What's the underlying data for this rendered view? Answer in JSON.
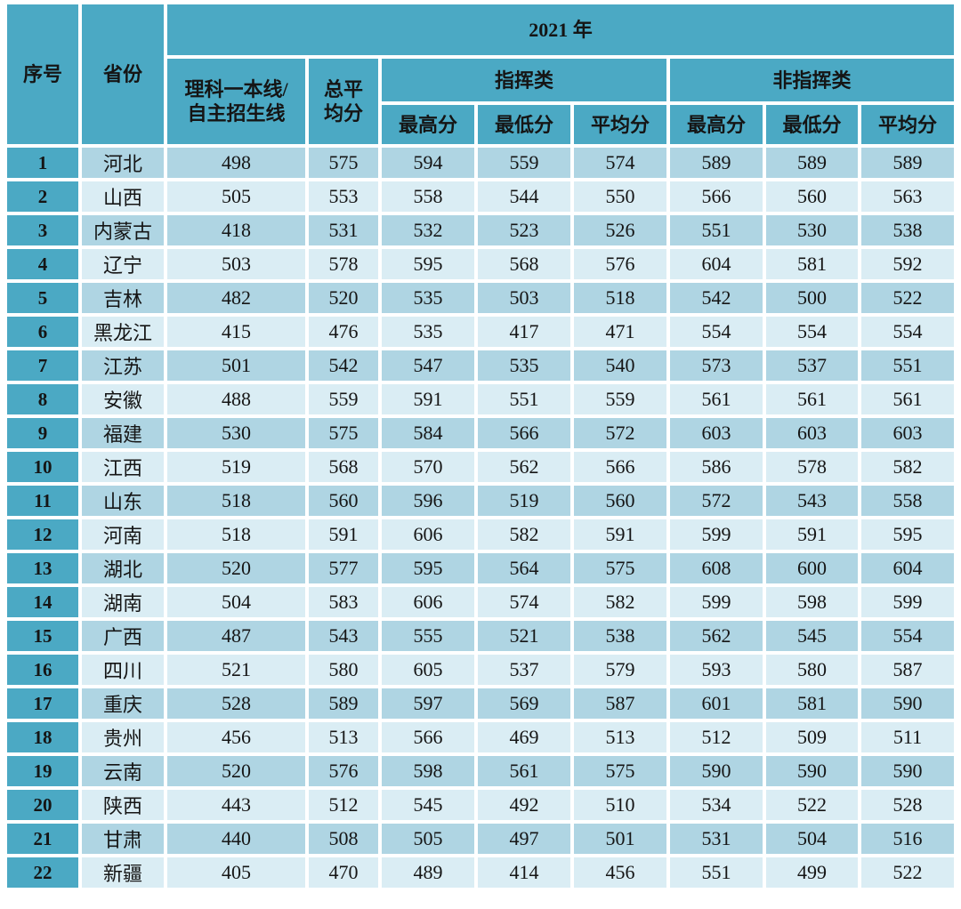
{
  "table": {
    "header": {
      "serial": "序号",
      "province": "省份",
      "year": "2021 年",
      "science_line_1": "理科一本线/",
      "science_line_2": "自主招生线",
      "total_avg_1": "总平",
      "total_avg_2": "均分",
      "command": "指挥类",
      "non_command": "非指挥类",
      "max_score": "最高分",
      "min_score": "最低分",
      "avg_score": "平均分"
    },
    "rows": [
      {
        "no": "1",
        "province": "河北",
        "scores": [
          498,
          575,
          594,
          559,
          574,
          589,
          589,
          589
        ]
      },
      {
        "no": "2",
        "province": "山西",
        "scores": [
          505,
          553,
          558,
          544,
          550,
          566,
          560,
          563
        ]
      },
      {
        "no": "3",
        "province": "内蒙古",
        "scores": [
          418,
          531,
          532,
          523,
          526,
          551,
          530,
          538
        ]
      },
      {
        "no": "4",
        "province": "辽宁",
        "scores": [
          503,
          578,
          595,
          568,
          576,
          604,
          581,
          592
        ]
      },
      {
        "no": "5",
        "province": "吉林",
        "scores": [
          482,
          520,
          535,
          503,
          518,
          542,
          500,
          522
        ]
      },
      {
        "no": "6",
        "province": "黑龙江",
        "scores": [
          415,
          476,
          535,
          417,
          471,
          554,
          554,
          554
        ]
      },
      {
        "no": "7",
        "province": "江苏",
        "scores": [
          501,
          542,
          547,
          535,
          540,
          573,
          537,
          551
        ]
      },
      {
        "no": "8",
        "province": "安徽",
        "scores": [
          488,
          559,
          591,
          551,
          559,
          561,
          561,
          561
        ]
      },
      {
        "no": "9",
        "province": "福建",
        "scores": [
          530,
          575,
          584,
          566,
          572,
          603,
          603,
          603
        ]
      },
      {
        "no": "10",
        "province": "江西",
        "scores": [
          519,
          568,
          570,
          562,
          566,
          586,
          578,
          582
        ]
      },
      {
        "no": "11",
        "province": "山东",
        "scores": [
          518,
          560,
          596,
          519,
          560,
          572,
          543,
          558
        ]
      },
      {
        "no": "12",
        "province": "河南",
        "scores": [
          518,
          591,
          606,
          582,
          591,
          599,
          591,
          595
        ]
      },
      {
        "no": "13",
        "province": "湖北",
        "scores": [
          520,
          577,
          595,
          564,
          575,
          608,
          600,
          604
        ]
      },
      {
        "no": "14",
        "province": "湖南",
        "scores": [
          504,
          583,
          606,
          574,
          582,
          599,
          598,
          599
        ]
      },
      {
        "no": "15",
        "province": "广西",
        "scores": [
          487,
          543,
          555,
          521,
          538,
          562,
          545,
          554
        ]
      },
      {
        "no": "16",
        "province": "四川",
        "scores": [
          521,
          580,
          605,
          537,
          579,
          593,
          580,
          587
        ]
      },
      {
        "no": "17",
        "province": "重庆",
        "scores": [
          528,
          589,
          597,
          569,
          587,
          601,
          581,
          590
        ]
      },
      {
        "no": "18",
        "province": "贵州",
        "scores": [
          456,
          513,
          566,
          469,
          513,
          512,
          509,
          511
        ]
      },
      {
        "no": "19",
        "province": "云南",
        "scores": [
          520,
          576,
          598,
          561,
          575,
          590,
          590,
          590
        ]
      },
      {
        "no": "20",
        "province": "陕西",
        "scores": [
          443,
          512,
          545,
          492,
          510,
          534,
          522,
          528
        ]
      },
      {
        "no": "21",
        "province": "甘肃",
        "scores": [
          440,
          508,
          505,
          497,
          501,
          531,
          504,
          516
        ]
      },
      {
        "no": "22",
        "province": "新疆",
        "scores": [
          405,
          470,
          489,
          414,
          456,
          551,
          499,
          522
        ]
      }
    ],
    "colors": {
      "header_bg": "#4BA9C4",
      "row_odd_bg": "#AFD5E3",
      "row_even_bg": "#DAEDF4",
      "text": "#151515"
    }
  }
}
